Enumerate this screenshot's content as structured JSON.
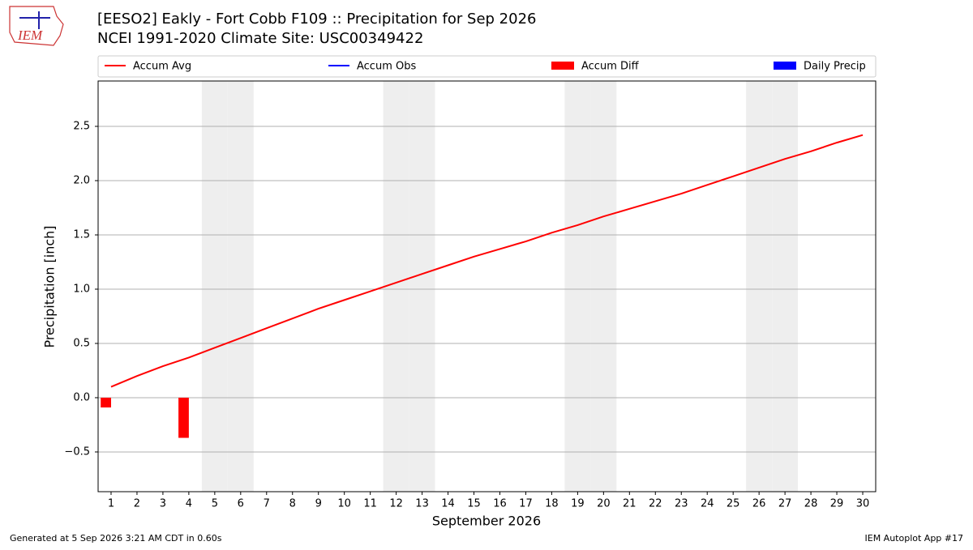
{
  "chart_data": {
    "type": "line",
    "logo_text": "IEM",
    "title": "[EESO2] Eakly - Fort Cobb F109 :: Precipitation for Sep 2026",
    "subtitle": "NCEI 1991-2020 Climate Site: USC00349422",
    "x_label": "September 2026",
    "y_label": "Precipitation [inch]",
    "footer_left": "Generated at 5 Sep 2026 3:21 AM CDT in 0.60s",
    "footer_right": "IEM Autoplot App #17",
    "x": [
      1,
      2,
      3,
      4,
      5,
      6,
      7,
      8,
      9,
      10,
      11,
      12,
      13,
      14,
      15,
      16,
      17,
      18,
      19,
      20,
      21,
      22,
      23,
      24,
      25,
      26,
      27,
      28,
      29,
      30
    ],
    "weekend_days": [
      5,
      6,
      12,
      13,
      19,
      20,
      26,
      27
    ],
    "series": [
      {
        "name": "Accum Avg",
        "color": "#ff0000",
        "kind": "line",
        "values": [
          0.1,
          0.2,
          0.29,
          0.37,
          0.46,
          0.55,
          0.64,
          0.73,
          0.82,
          0.9,
          0.98,
          1.06,
          1.14,
          1.22,
          1.3,
          1.37,
          1.44,
          1.52,
          1.59,
          1.67,
          1.74,
          1.81,
          1.88,
          1.96,
          2.04,
          2.12,
          2.2,
          2.27,
          2.35,
          2.42
        ]
      },
      {
        "name": "Accum Obs",
        "color": "#0000ff",
        "kind": "line",
        "values": [
          null,
          null,
          null,
          null,
          null,
          null,
          null,
          null,
          null,
          null,
          null,
          null,
          null,
          null,
          null,
          null,
          null,
          null,
          null,
          null,
          null,
          null,
          null,
          null,
          null,
          null,
          null,
          null,
          null,
          null
        ]
      },
      {
        "name": "Accum Diff",
        "color": "#ff0000",
        "kind": "bar",
        "values": [
          -0.09,
          null,
          null,
          -0.37,
          null,
          null,
          null,
          null,
          null,
          null,
          null,
          null,
          null,
          null,
          null,
          null,
          null,
          null,
          null,
          null,
          null,
          null,
          null,
          null,
          null,
          null,
          null,
          null,
          null,
          null
        ]
      },
      {
        "name": "Daily Precip",
        "color": "#0000ff",
        "kind": "bar",
        "values": [
          null,
          null,
          null,
          null,
          null,
          null,
          null,
          null,
          null,
          null,
          null,
          null,
          null,
          null,
          null,
          null,
          null,
          null,
          null,
          null,
          null,
          null,
          null,
          null,
          null,
          null,
          null,
          null,
          null,
          null
        ]
      }
    ],
    "xlim": [
      0.5,
      30.5
    ],
    "ylim": [
      -0.866,
      2.918
    ],
    "xticks": [
      1,
      2,
      3,
      4,
      5,
      6,
      7,
      8,
      9,
      10,
      11,
      12,
      13,
      14,
      15,
      16,
      17,
      18,
      19,
      20,
      21,
      22,
      23,
      24,
      25,
      26,
      27,
      28,
      29,
      30
    ],
    "yticks": [
      {
        "value": -0.5,
        "label": "−0.5"
      },
      {
        "value": 0,
        "label": "0.0"
      },
      {
        "value": 0.5,
        "label": "0.5"
      },
      {
        "value": 1,
        "label": "1.0"
      },
      {
        "value": 1.5,
        "label": "1.5"
      },
      {
        "value": 2,
        "label": "2.0"
      },
      {
        "value": 2.5,
        "label": "2.5"
      }
    ],
    "grid": true
  }
}
